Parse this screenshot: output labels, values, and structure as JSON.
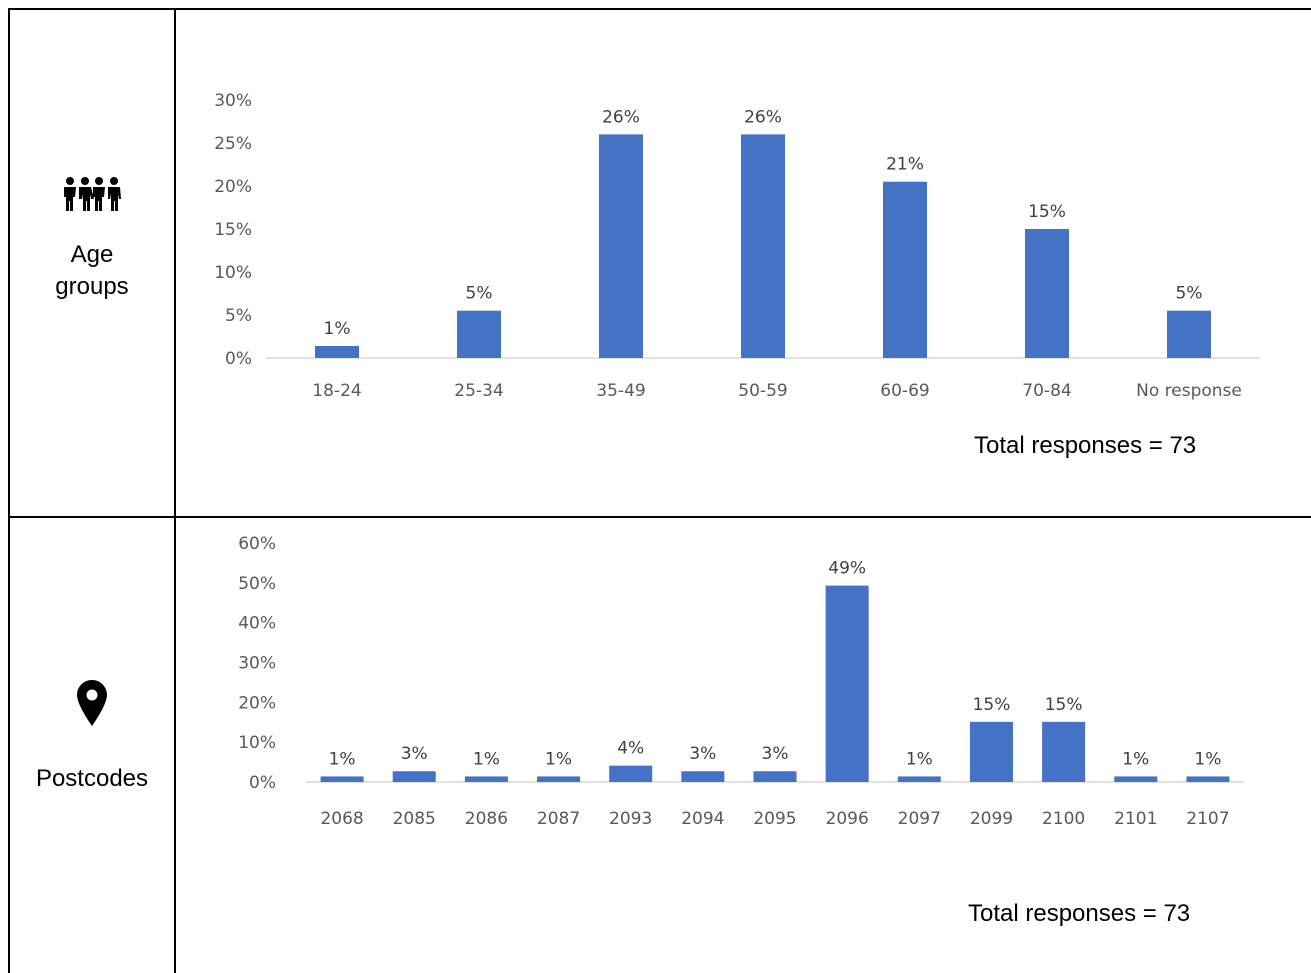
{
  "rows": [
    {
      "label": "Age groups",
      "icon": "people-group-icon",
      "total_text": "Total responses = 73"
    },
    {
      "label": "Postcodes",
      "icon": "map-pin-icon",
      "total_text": "Total responses = 73"
    }
  ],
  "chart_data": [
    {
      "type": "bar",
      "categories": [
        "18-24",
        "25-34",
        "35-49",
        "50-59",
        "60-69",
        "70-84",
        "No response"
      ],
      "values": [
        1.4,
        5.5,
        26,
        26,
        20.5,
        15,
        5.5
      ],
      "data_labels": [
        "1%",
        "5%",
        "26%",
        "26%",
        "21%",
        "15%",
        "5%"
      ],
      "y_ticks": [
        "0%",
        "5%",
        "10%",
        "15%",
        "20%",
        "25%",
        "30%"
      ],
      "ylim": [
        0,
        30
      ],
      "grid": false,
      "color": "#4472C4"
    },
    {
      "type": "bar",
      "categories": [
        "2068",
        "2085",
        "2086",
        "2087",
        "2093",
        "2094",
        "2095",
        "2096",
        "2097",
        "2099",
        "2100",
        "2101",
        "2107"
      ],
      "values": [
        1.4,
        2.7,
        1.4,
        1.4,
        4.1,
        2.7,
        2.7,
        49.3,
        1.4,
        15.1,
        15.1,
        1.4,
        1.4
      ],
      "data_labels": [
        "1%",
        "3%",
        "1%",
        "1%",
        "4%",
        "3%",
        "3%",
        "49%",
        "1%",
        "15%",
        "15%",
        "1%",
        "1%"
      ],
      "y_ticks": [
        "0%",
        "10%",
        "20%",
        "30%",
        "40%",
        "50%",
        "60%"
      ],
      "ylim": [
        0,
        60
      ],
      "grid": false,
      "color": "#4472C4"
    }
  ]
}
